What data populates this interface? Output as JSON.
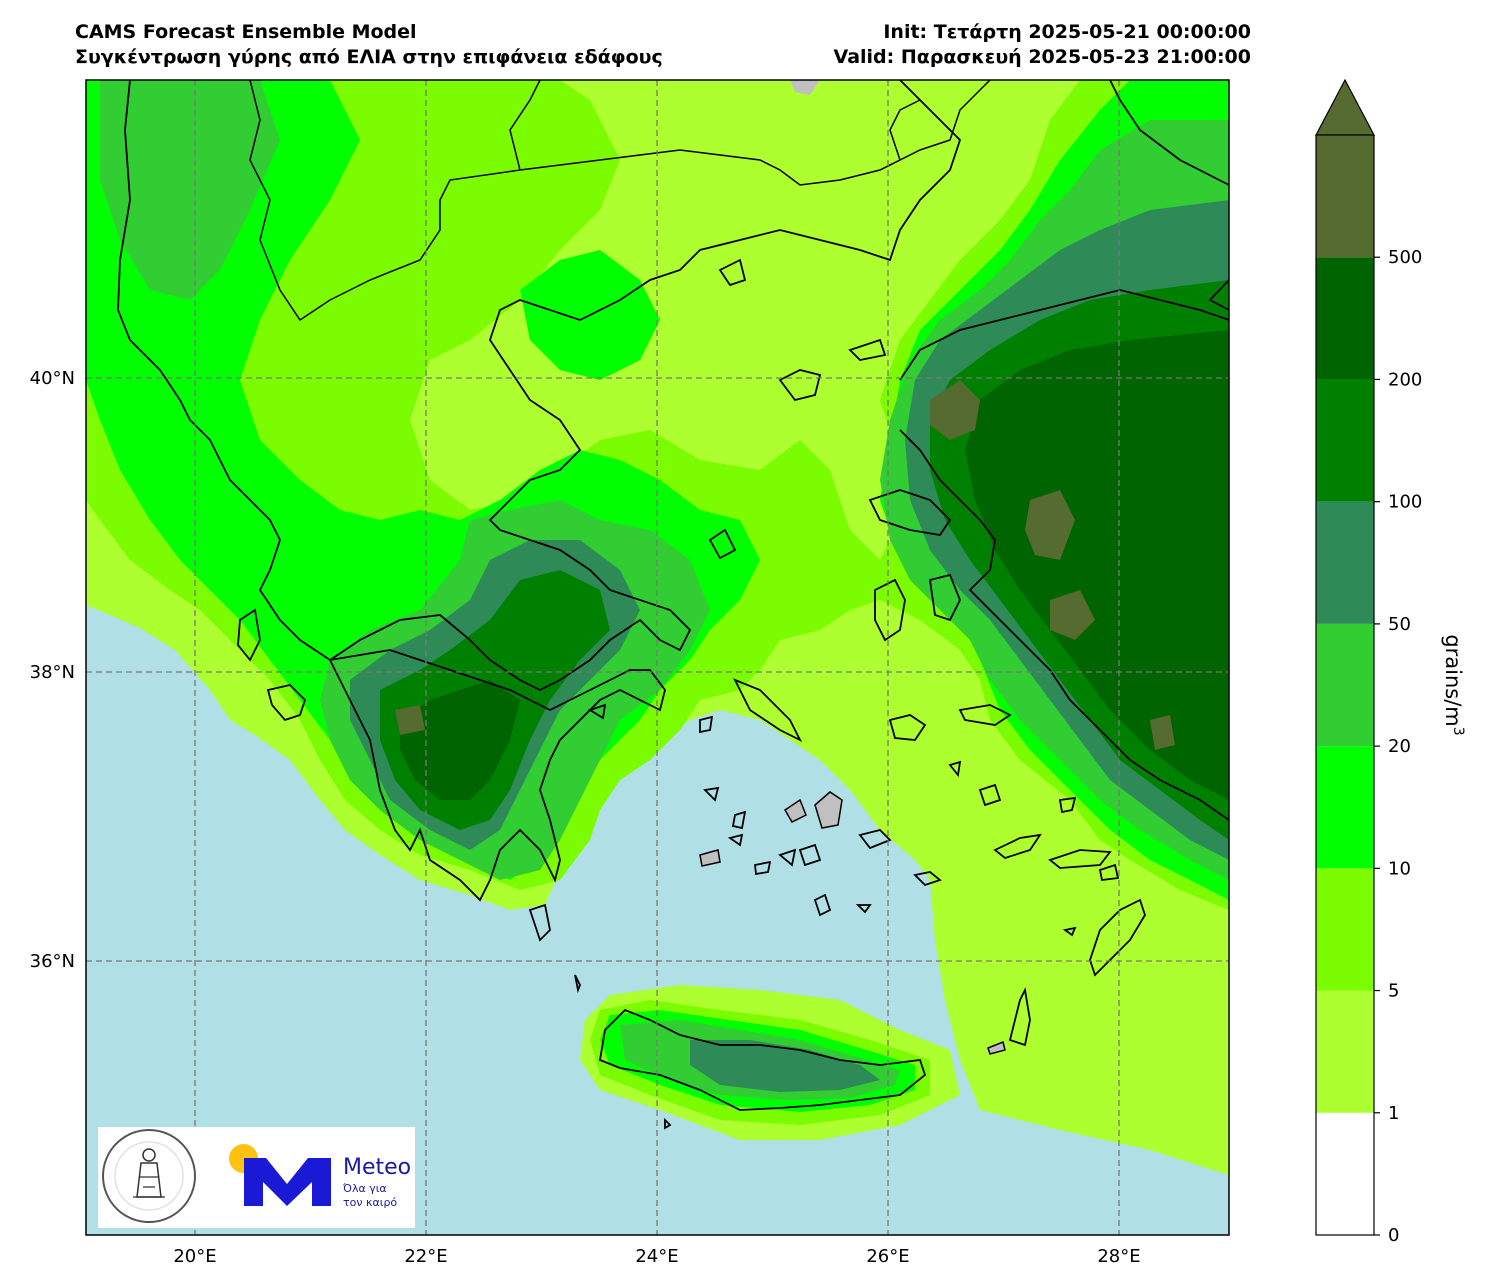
{
  "header": {
    "title_line1": "CAMS Forecast Ensemble Model",
    "title_line2": "Συγκέντρωση γύρης από ΕΛΙΑ στην επιφάνεια εδάφους",
    "init_line": "Init: Τετάρτη 2025-05-21 00:00:00",
    "valid_line": "Valid: Παρασκευή 2025-05-23 21:00:00"
  },
  "map": {
    "longitude_ticks": [
      "20°E",
      "22°E",
      "24°E",
      "26°E",
      "28°E"
    ],
    "latitude_ticks": [
      "40°N",
      "38°N",
      "36°N"
    ],
    "gridlines": "dashed",
    "sea_color": "#b0dfe5",
    "land_no_data_color": "#c0c0c0"
  },
  "colorbar": {
    "title": "grains/m³",
    "levels": [
      "0",
      "1",
      "5",
      "10",
      "20",
      "50",
      "100",
      "200",
      "500"
    ],
    "colors": [
      "#ffffff",
      "#adff2f",
      "#7cfc00",
      "#00ff00",
      "#32cd32",
      "#2e8b57",
      "#008000",
      "#006400",
      "#556b2f"
    ],
    "extend": "max"
  },
  "logos": {
    "seal_name": "observatory-seal",
    "brand_text": "Meteo",
    "slogan_line1": "Όλα για",
    "slogan_line2": "τον καιρό",
    "brand_color": "#1a1aa6",
    "sun_color": "#ffc20e"
  }
}
